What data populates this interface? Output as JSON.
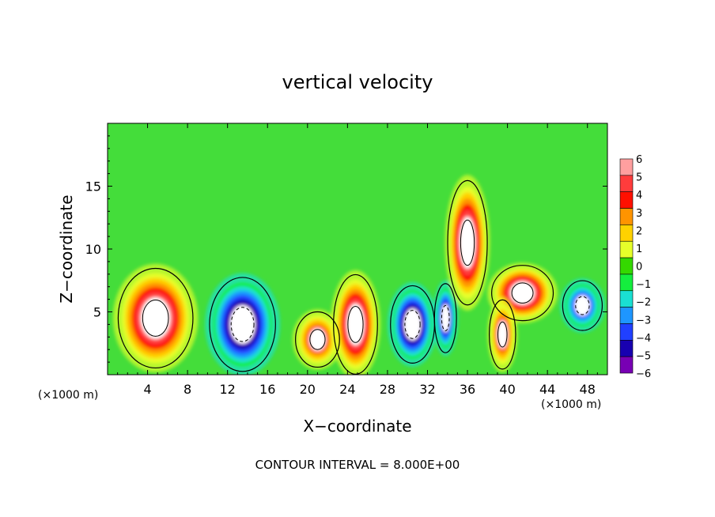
{
  "chart_data": {
    "type": "heatmap",
    "title": "vertical velocity",
    "xlabel": "X−coordinate",
    "ylabel": "Z−coordinate",
    "x_unit_left": "(×1000 m)",
    "x_unit_right": "(×1000 m)",
    "footer": "CONTOUR INTERVAL = 8.000E+00",
    "xlim": [
      0,
      50
    ],
    "ylim": [
      0,
      20
    ],
    "x_ticks": [
      4,
      8,
      12,
      16,
      20,
      24,
      28,
      32,
      36,
      40,
      44,
      48
    ],
    "x_tick_labels": [
      "4",
      "8",
      "12",
      "16",
      "20",
      "24",
      "28",
      "32",
      "36",
      "40",
      "44",
      "48"
    ],
    "y_ticks": [
      5,
      10,
      15
    ],
    "y_tick_labels": [
      "5",
      "10",
      "15"
    ],
    "colorbar": {
      "levels": [
        6,
        5,
        4,
        3,
        2,
        1,
        0,
        -1,
        -2,
        -3,
        -4,
        -5,
        -6
      ],
      "labels": [
        "6",
        "5",
        "4",
        "3",
        "2",
        "1",
        "0",
        "−1",
        "−2",
        "−3",
        "−4",
        "−5",
        "−6"
      ],
      "colors": [
        "#ff9f9f",
        "#ff3c3c",
        "#ff1000",
        "#ff9400",
        "#ffd200",
        "#e6ff2a",
        "#34d800",
        "#14ee3e",
        "#1ae0d2",
        "#1e96ff",
        "#2040ff",
        "#1800b0",
        "#7800b4"
      ]
    },
    "background_color": "#44dd3a",
    "features": [
      {
        "name": "updraft",
        "x": 4.8,
        "z": 4.5,
        "rx": 3.4,
        "rz": 3.6,
        "w": 6
      },
      {
        "name": "downdraft",
        "x": 13.5,
        "z": 4.0,
        "rx": 3.0,
        "rz": 3.4,
        "w": -6
      },
      {
        "name": "updraft",
        "x": 21.0,
        "z": 2.8,
        "rx": 2.0,
        "rz": 2.0,
        "w": 4
      },
      {
        "name": "updraft",
        "x": 24.8,
        "z": 4.0,
        "rx": 2.0,
        "rz": 3.6,
        "w": 6
      },
      {
        "name": "downdraft",
        "x": 30.5,
        "z": 4.0,
        "rx": 2.0,
        "rz": 2.8,
        "w": -6
      },
      {
        "name": "downdraft",
        "x": 33.8,
        "z": 4.5,
        "rx": 1.0,
        "rz": 2.5,
        "w": -5
      },
      {
        "name": "updraft",
        "x": 36.0,
        "z": 10.5,
        "rx": 1.8,
        "rz": 4.5,
        "w": 6
      },
      {
        "name": "updraft",
        "x": 41.5,
        "z": 6.5,
        "rx": 2.8,
        "rz": 2.0,
        "w": 6
      },
      {
        "name": "updraft",
        "x": 39.5,
        "z": 3.2,
        "rx": 1.2,
        "rz": 2.5,
        "w": 4
      },
      {
        "name": "downdraft",
        "x": 47.5,
        "z": 5.5,
        "rx": 1.8,
        "rz": 1.8,
        "w": -4
      }
    ]
  }
}
